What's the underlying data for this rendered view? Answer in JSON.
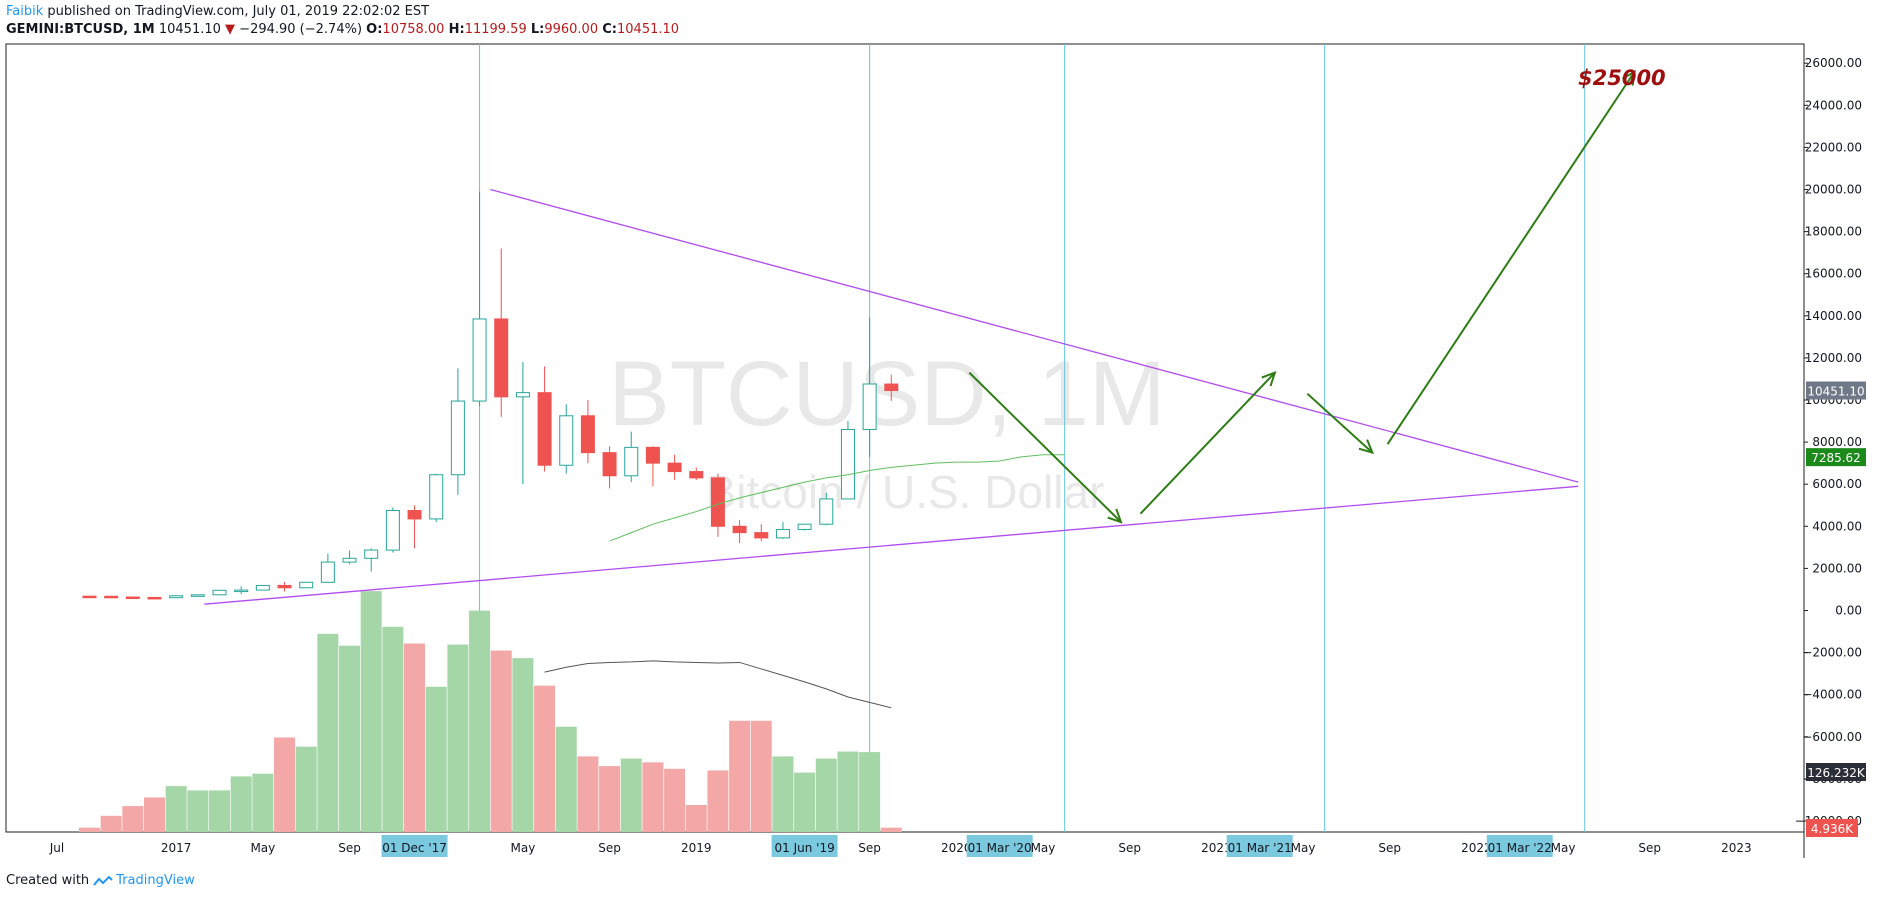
{
  "header": {
    "author": "Faibik",
    "published": " published on TradingView.com, July 01, 2019 22:02:02 EST"
  },
  "ticker": {
    "symbol": "GEMINI:BTCUSD, 1M",
    "last": "10451.10",
    "change": "−294.90 (−2.74%)",
    "o_label": "O:",
    "o": "10758.00",
    "h_label": "H:",
    "h": "11199.59",
    "l_label": "L:",
    "l": "9960.00",
    "c_label": "C:",
    "c": "10451.10"
  },
  "watermark": {
    "main": "BTCUSD, 1M",
    "sub": "Bitcoin / U.S. Dollar"
  },
  "footer": {
    "created_with": "Created with",
    "brand": "TradingView"
  },
  "colors": {
    "up": "#26a69a",
    "down": "#ef5350",
    "vol_up": "#a5d6a7",
    "vol_down": "#f4a7a7",
    "trendline": "#b14cf0",
    "arrow": "#2e7d14",
    "vline": "#66c3e0",
    "target": "#9e0f0f",
    "ma": "#5fbf5f",
    "vol_ma": "#555555"
  },
  "chart_data": {
    "type": "candlestick",
    "title": "BTCUSD, 1M",
    "subtitle": "Bitcoin / U.S. Dollar",
    "y_range": [
      -10000,
      27000
    ],
    "y_ticks": [
      "26000.00",
      "24000.00",
      "22000.00",
      "20000.00",
      "18000.00",
      "16000.00",
      "14000.00",
      "12000.00",
      "10000.00",
      "8000.00",
      "6000.00",
      "4000.00",
      "2000.00",
      "0.00",
      "−2000.00",
      "−4000.00",
      "−6000.00",
      "−8000.00",
      "−10000.00"
    ],
    "x_ticks": [
      "Jul",
      "2017",
      "May",
      "Sep",
      "01 Dec '17",
      "May",
      "Sep",
      "2019",
      "01 Jun '19",
      "Sep",
      "2020",
      "01 Mar '20",
      "May",
      "Sep",
      "2021",
      "01 Mar '21",
      "May",
      "Sep",
      "2022",
      "01 Mar '22",
      "May",
      "Sep",
      "2023"
    ],
    "x_tick_index": [
      -1.5,
      4,
      8,
      12,
      15,
      20,
      24,
      28,
      33,
      36,
      40,
      42,
      44,
      48,
      52,
      54,
      56,
      60,
      64,
      66,
      68,
      72,
      76
    ],
    "highlighted_x_ticks": [
      "01 Dec '17",
      "01 Jun '19",
      "01 Mar '20",
      "01 Mar '21",
      "01 Mar '22"
    ],
    "months": [
      "2016-06",
      "2016-07",
      "2016-08",
      "2016-09",
      "2016-10",
      "2016-11",
      "2016-12",
      "2017-01",
      "2017-02",
      "2017-03",
      "2017-04",
      "2017-05",
      "2017-06",
      "2017-07",
      "2017-08",
      "2017-09",
      "2017-10",
      "2017-11",
      "2017-12",
      "2018-01",
      "2018-02",
      "2018-03",
      "2018-04",
      "2018-05",
      "2018-06",
      "2018-07",
      "2018-08",
      "2018-09",
      "2018-10",
      "2018-11",
      "2018-12",
      "2019-01",
      "2019-02",
      "2019-03",
      "2019-04",
      "2019-05",
      "2019-06",
      "2019-07"
    ],
    "ohlc": [
      [
        680,
        700,
        660,
        675
      ],
      [
        675,
        690,
        640,
        640
      ],
      [
        640,
        650,
        600,
        620
      ],
      [
        620,
        640,
        600,
        610
      ],
      [
        610,
        710,
        600,
        700
      ],
      [
        700,
        760,
        690,
        745
      ],
      [
        745,
        980,
        740,
        960
      ],
      [
        960,
        1150,
        780,
        970
      ],
      [
        970,
        1200,
        950,
        1190
      ],
      [
        1190,
        1350,
        900,
        1080
      ],
      [
        1080,
        1350,
        1070,
        1340
      ],
      [
        1340,
        2700,
        1320,
        2300
      ],
      [
        2300,
        2850,
        2200,
        2480
      ],
      [
        2480,
        2950,
        1850,
        2870
      ],
      [
        2870,
        4900,
        2750,
        4750
      ],
      [
        4750,
        5000,
        2950,
        4350
      ],
      [
        4350,
        6500,
        4200,
        6450
      ],
      [
        6450,
        11500,
        5500,
        9950
      ],
      [
        9950,
        19900,
        9700,
        13850
      ],
      [
        13850,
        17200,
        9200,
        10150
      ],
      [
        10150,
        11800,
        6000,
        10350
      ],
      [
        10350,
        11600,
        6600,
        6900
      ],
      [
        6900,
        9800,
        6500,
        9250
      ],
      [
        9250,
        10000,
        7000,
        7500
      ],
      [
        7500,
        7800,
        5800,
        6400
      ],
      [
        6400,
        8500,
        6100,
        7750
      ],
      [
        7750,
        7800,
        5900,
        7000
      ],
      [
        7000,
        7400,
        6200,
        6600
      ],
      [
        6600,
        6800,
        6200,
        6300
      ],
      [
        6300,
        6500,
        3500,
        4000
      ],
      [
        4000,
        4300,
        3200,
        3700
      ],
      [
        3700,
        4100,
        3300,
        3450
      ],
      [
        3450,
        4200,
        3400,
        3850
      ],
      [
        3850,
        4100,
        3800,
        4100
      ],
      [
        4100,
        5600,
        4050,
        5300
      ],
      [
        5300,
        9000,
        5300,
        8600
      ],
      [
        8600,
        13900,
        7300,
        10760
      ],
      [
        10758,
        11199.59,
        9960,
        10451.1
      ]
    ],
    "ma_overlay": [
      [
        24,
        3300
      ],
      [
        25,
        3700
      ],
      [
        26,
        4100
      ],
      [
        27,
        4400
      ],
      [
        28,
        4700
      ],
      [
        29,
        5050
      ],
      [
        30,
        5350
      ],
      [
        31,
        5600
      ],
      [
        32,
        5850
      ],
      [
        33,
        6100
      ],
      [
        34,
        6300
      ],
      [
        35,
        6450
      ],
      [
        36,
        6650
      ],
      [
        37,
        6800
      ],
      [
        38,
        6900
      ],
      [
        39,
        7000
      ],
      [
        40,
        7050
      ],
      [
        41,
        7050
      ],
      [
        42,
        7100
      ],
      [
        43,
        7300
      ],
      [
        44,
        7400
      ],
      [
        45,
        7400
      ]
    ],
    "ma_value": "7285.62",
    "volume": {
      "values": [
        8,
        30,
        48,
        64,
        85,
        77,
        77,
        103,
        108,
        175,
        158,
        367,
        345,
        446,
        380,
        349,
        269,
        347,
        410,
        336,
        322,
        271,
        195,
        140,
        122,
        136,
        129,
        117,
        50,
        114,
        206,
        206,
        140,
        110,
        136,
        149,
        148,
        8
      ],
      "last_label": "126.232K",
      "last_bar_label": "4.936K",
      "ma": [
        [
          21,
          296
        ],
        [
          22,
          305
        ],
        [
          23,
          312
        ],
        [
          24,
          314
        ],
        [
          25,
          315
        ],
        [
          26,
          317
        ],
        [
          27,
          315
        ],
        [
          28,
          314
        ],
        [
          29,
          313
        ],
        [
          30,
          314
        ],
        [
          31,
          302
        ],
        [
          32,
          290
        ],
        [
          33,
          278
        ],
        [
          34,
          265
        ],
        [
          35,
          250
        ],
        [
          36,
          240
        ],
        [
          37,
          230
        ]
      ]
    },
    "annotations": {
      "target_label": "$25000",
      "last_price_label": "10451.10",
      "trendline_upper": [
        [
          18.5,
          20000
        ],
        [
          68.7,
          6100
        ]
      ],
      "trendline_lower": [
        [
          5.3,
          300
        ],
        [
          68.7,
          5900
        ]
      ],
      "arrows": [
        [
          [
            40.6,
            11300
          ],
          [
            47.6,
            4200
          ]
        ],
        [
          [
            48.5,
            4600
          ],
          [
            54.7,
            11300
          ]
        ],
        [
          [
            56.2,
            10300
          ],
          [
            59.2,
            7500
          ]
        ],
        [
          [
            59.9,
            7900
          ],
          [
            71.3,
            25600
          ]
        ]
      ],
      "vertical_lines_index": [
        18,
        36,
        45,
        57,
        69
      ]
    }
  }
}
